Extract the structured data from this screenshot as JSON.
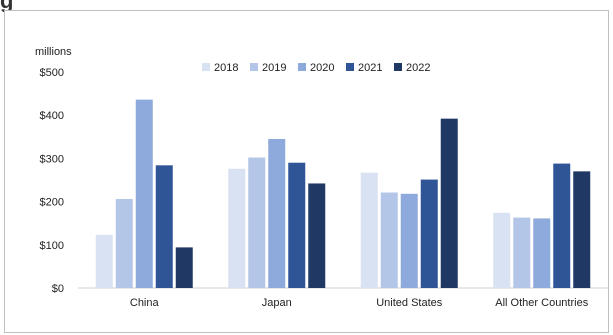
{
  "chart_data": {
    "type": "bar",
    "title": "",
    "unit_label": "millions",
    "xlabel": "",
    "ylabel": "",
    "categories": [
      "China",
      "Japan",
      "United States",
      "All Other Countries"
    ],
    "series": [
      {
        "name": "2018",
        "color": "#d9e2f2",
        "values": [
          123,
          276,
          267,
          174
        ]
      },
      {
        "name": "2019",
        "color": "#b4c6e7",
        "values": [
          206,
          302,
          221,
          163
        ]
      },
      {
        "name": "2020",
        "color": "#8ea9db",
        "values": [
          436,
          345,
          218,
          161
        ]
      },
      {
        "name": "2021",
        "color": "#2f5597",
        "values": [
          284,
          290,
          251,
          288
        ]
      },
      {
        "name": "2022",
        "color": "#203864",
        "values": [
          94,
          242,
          392,
          270
        ]
      }
    ],
    "ylim": [
      0,
      500
    ],
    "yticks": [
      0,
      100,
      200,
      300,
      400,
      500
    ],
    "ytick_labels": [
      "$0",
      "$100",
      "$200",
      "$300",
      "$400",
      "$500"
    ],
    "grid": false,
    "legend_position": "top"
  },
  "partial_title": "g"
}
